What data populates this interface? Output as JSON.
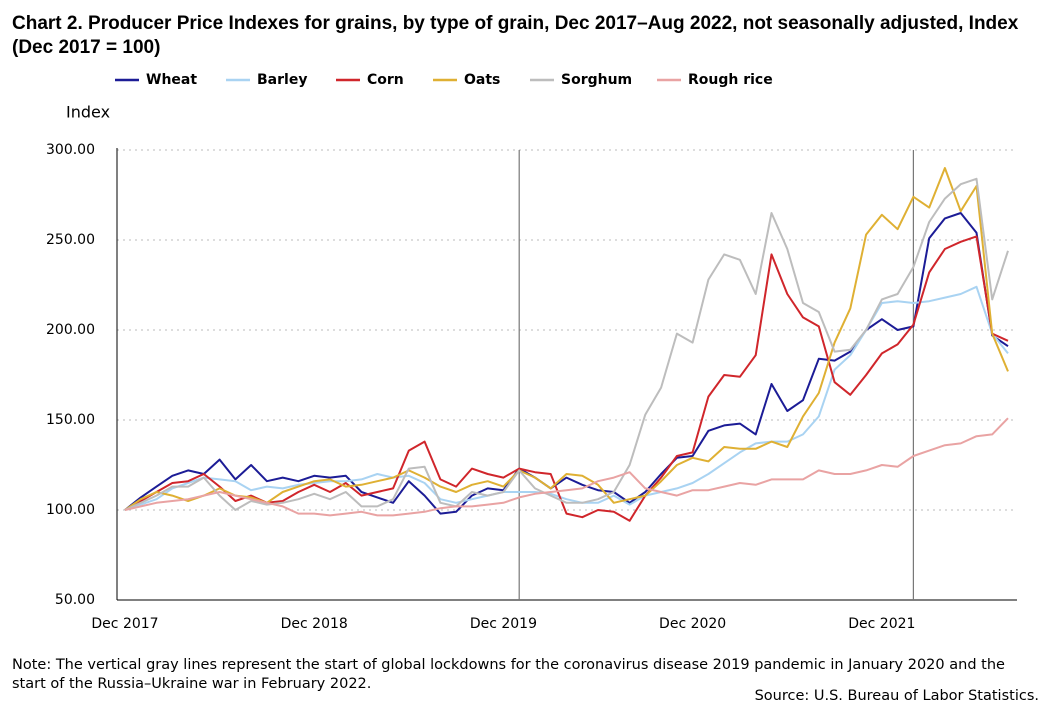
{
  "chart_data": {
    "type": "line",
    "title": "Chart 2. Producer Price Indexes for grains, by type of grain, Dec 2017–Aug 2022, not seasonally adjusted, Index (Dec 2017 = 100)",
    "y_label": "Index",
    "note": "Note: The vertical gray lines represent the start of global lockdowns for the coronavirus disease 2019 pandemic in January 2020 and the start of the Russia–Ukraine war in February 2022.",
    "source": "Source: U.S. Bureau of Labor Statistics.",
    "categories": [
      "Dec 2017",
      null,
      null,
      null,
      null,
      null,
      null,
      null,
      null,
      null,
      null,
      null,
      "Dec 2018",
      null,
      null,
      null,
      null,
      null,
      null,
      null,
      null,
      null,
      null,
      null,
      "Dec 2019",
      null,
      null,
      null,
      null,
      null,
      null,
      null,
      null,
      null,
      null,
      null,
      "Dec 2020",
      null,
      null,
      null,
      null,
      null,
      null,
      null,
      null,
      null,
      null,
      null,
      "Dec 2021",
      null,
      null,
      null,
      null,
      null,
      null,
      null,
      null
    ],
    "vlines": [
      25,
      50
    ],
    "ylim": [
      50,
      300
    ],
    "yticks": [
      {
        "value": 50,
        "label": "50.00"
      },
      {
        "value": 100,
        "label": "100.00"
      },
      {
        "value": 150,
        "label": "150.00"
      },
      {
        "value": 200,
        "label": "200.00"
      },
      {
        "value": 250,
        "label": "250.00"
      },
      {
        "value": 300,
        "label": "300.00"
      }
    ],
    "grid": true,
    "legend": "top",
    "series": [
      {
        "name": "Wheat",
        "color": "#1c1c96",
        "values": [
          100,
          107,
          113,
          119,
          122,
          120,
          128,
          117,
          125,
          116,
          118,
          116,
          119,
          118,
          119,
          110,
          107,
          104,
          116,
          108,
          98,
          99,
          108,
          112,
          111,
          123,
          118,
          112,
          118,
          114,
          111,
          110,
          104,
          110,
          120,
          129,
          130,
          144,
          147,
          148,
          142,
          170,
          155,
          161,
          184,
          183,
          188,
          200,
          206,
          200,
          202,
          251,
          262,
          265,
          254,
          197,
          191
        ]
      },
      {
        "name": "Barley",
        "color": "#a9d3f2",
        "values": [
          100,
          103,
          106,
          112,
          115,
          118,
          117,
          116,
          111,
          113,
          112,
          114,
          115,
          116,
          116,
          117,
          120,
          118,
          119,
          115,
          106,
          104,
          106,
          108,
          110,
          110,
          110,
          109,
          106,
          104,
          104,
          108,
          103,
          108,
          110,
          112,
          115,
          120,
          126,
          132,
          137,
          138,
          138,
          142,
          152,
          178,
          186,
          200,
          215,
          216,
          215,
          216,
          218,
          220,
          224,
          198,
          187
        ]
      },
      {
        "name": "Corn",
        "color": "#d0262b",
        "values": [
          100,
          105,
          110,
          115,
          116,
          120,
          113,
          105,
          108,
          104,
          105,
          110,
          114,
          110,
          115,
          108,
          110,
          112,
          133,
          138,
          117,
          113,
          123,
          120,
          118,
          123,
          121,
          120,
          98,
          96,
          100,
          99,
          94,
          108,
          118,
          130,
          132,
          163,
          175,
          174,
          186,
          242,
          220,
          207,
          202,
          171,
          164,
          175,
          187,
          192,
          203,
          232,
          245,
          249,
          252,
          198,
          194
        ]
      },
      {
        "name": "Oats",
        "color": "#dfb033",
        "values": [
          100,
          106,
          110,
          108,
          105,
          108,
          112,
          108,
          107,
          104,
          110,
          113,
          116,
          117,
          113,
          114,
          116,
          118,
          122,
          118,
          113,
          110,
          114,
          116,
          113,
          122,
          118,
          112,
          120,
          119,
          114,
          104,
          106,
          108,
          116,
          125,
          129,
          127,
          135,
          134,
          134,
          138,
          135,
          152,
          165,
          193,
          212,
          253,
          264,
          256,
          274,
          268,
          290,
          266,
          280,
          198,
          177
        ]
      },
      {
        "name": "Sorghum",
        "color": "#bdbdbd",
        "values": [
          100,
          104,
          108,
          113,
          113,
          118,
          108,
          100,
          105,
          103,
          104,
          106,
          109,
          106,
          110,
          102,
          102,
          106,
          123,
          124,
          104,
          102,
          110,
          108,
          110,
          122,
          112,
          108,
          104,
          104,
          106,
          110,
          125,
          153,
          168,
          198,
          193,
          228,
          242,
          239,
          220,
          265,
          245,
          215,
          210,
          188,
          189,
          200,
          217,
          220,
          235,
          260,
          273,
          281,
          284,
          217,
          244
        ]
      },
      {
        "name": "Rough rice",
        "color": "#e9a3a3",
        "values": [
          100,
          102,
          104,
          105,
          106,
          108,
          110,
          108,
          106,
          104,
          102,
          98,
          98,
          97,
          98,
          99,
          97,
          97,
          98,
          99,
          101,
          102,
          102,
          103,
          104,
          107,
          109,
          110,
          111,
          112,
          116,
          118,
          121,
          112,
          110,
          108,
          111,
          111,
          113,
          115,
          114,
          117,
          117,
          117,
          122,
          120,
          120,
          122,
          125,
          124,
          130,
          133,
          136,
          137,
          141,
          142,
          151
        ]
      }
    ]
  }
}
